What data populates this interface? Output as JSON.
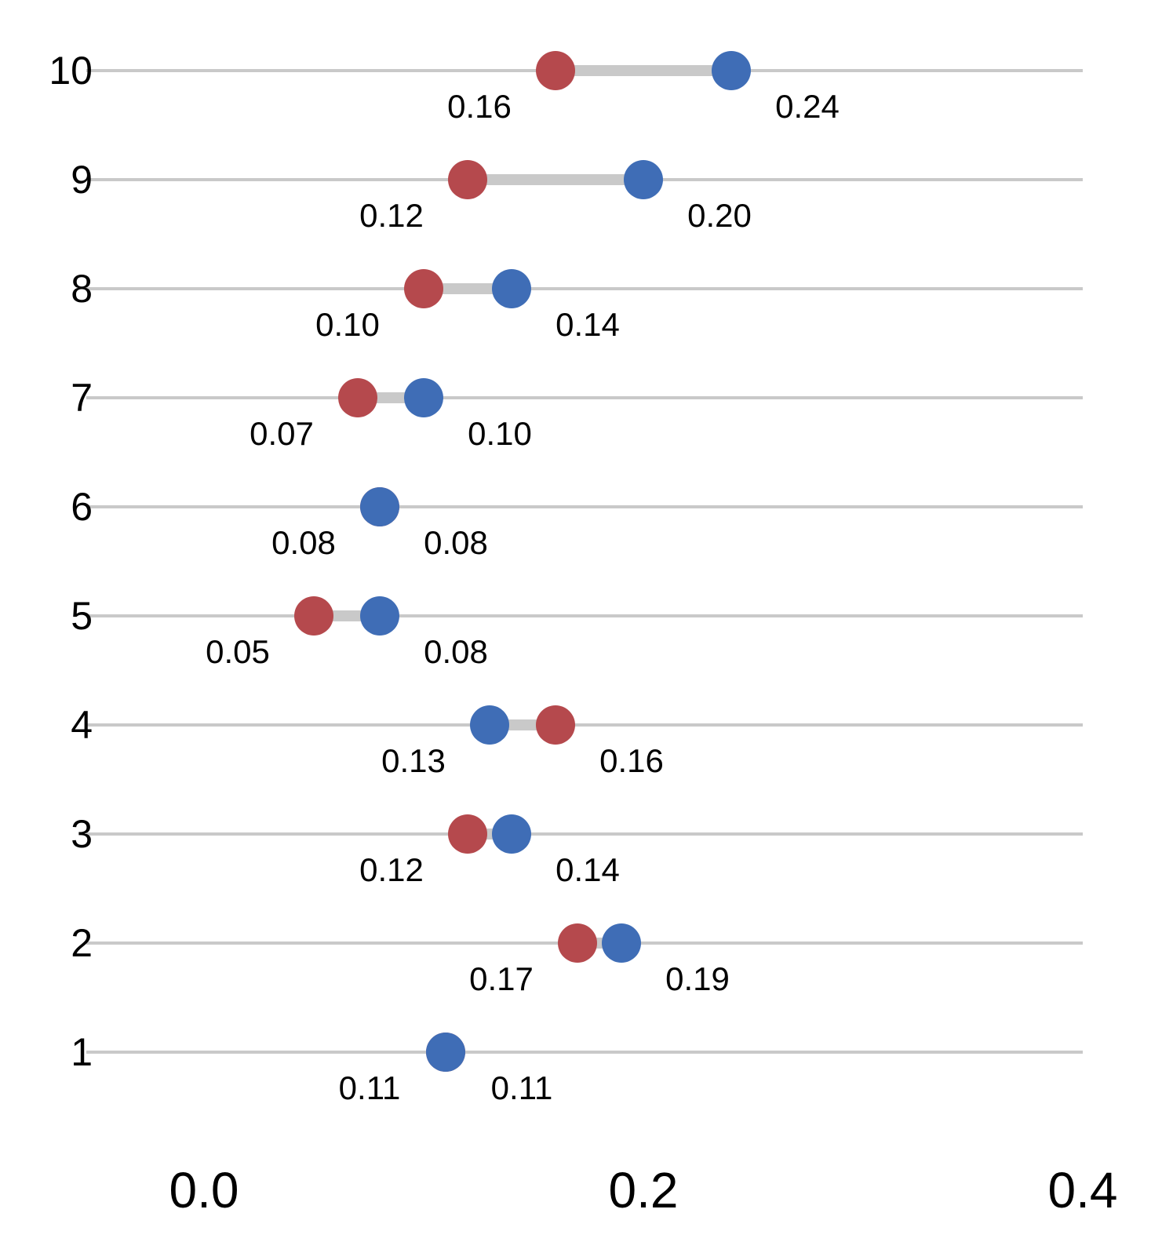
{
  "chart_data": {
    "type": "dumbbell",
    "title": "",
    "orientation": "horizontal",
    "categories": [
      "10",
      "9",
      "8",
      "7",
      "6",
      "5",
      "4",
      "3",
      "2",
      "1"
    ],
    "series": [
      {
        "name": "red-series",
        "color": "#b5494d",
        "values": [
          0.16,
          0.12,
          0.1,
          0.07,
          0.08,
          0.05,
          0.16,
          0.12,
          0.17,
          0.11
        ]
      },
      {
        "name": "blue-series",
        "color": "#3f6db6",
        "values": [
          0.24,
          0.2,
          0.14,
          0.1,
          0.08,
          0.08,
          0.13,
          0.14,
          0.19,
          0.11
        ]
      }
    ],
    "value_labels": [
      {
        "left": "0.16",
        "right": "0.24"
      },
      {
        "left": "0.12",
        "right": "0.20"
      },
      {
        "left": "0.10",
        "right": "0.14"
      },
      {
        "left": "0.07",
        "right": "0.10"
      },
      {
        "left": "0.08",
        "right": "0.08"
      },
      {
        "left": "0.05",
        "right": "0.08"
      },
      {
        "left": "0.13",
        "right": "0.16"
      },
      {
        "left": "0.12",
        "right": "0.14"
      },
      {
        "left": "0.17",
        "right": "0.19"
      },
      {
        "left": "0.11",
        "right": "0.11"
      }
    ],
    "xlabel": "",
    "ylabel": "",
    "xlim": [
      0.0,
      0.4
    ],
    "x_ticks": [
      {
        "value": 0.0,
        "label": "0.0"
      },
      {
        "value": 0.2,
        "label": "0.2"
      },
      {
        "value": 0.4,
        "label": "0.4"
      }
    ],
    "grid": "horizontal-category-lines",
    "legend": "none",
    "colors": {
      "gridline": "#c9c9c9",
      "connector": "#c9c9c9",
      "text": "#000000",
      "background": "#ffffff"
    }
  }
}
